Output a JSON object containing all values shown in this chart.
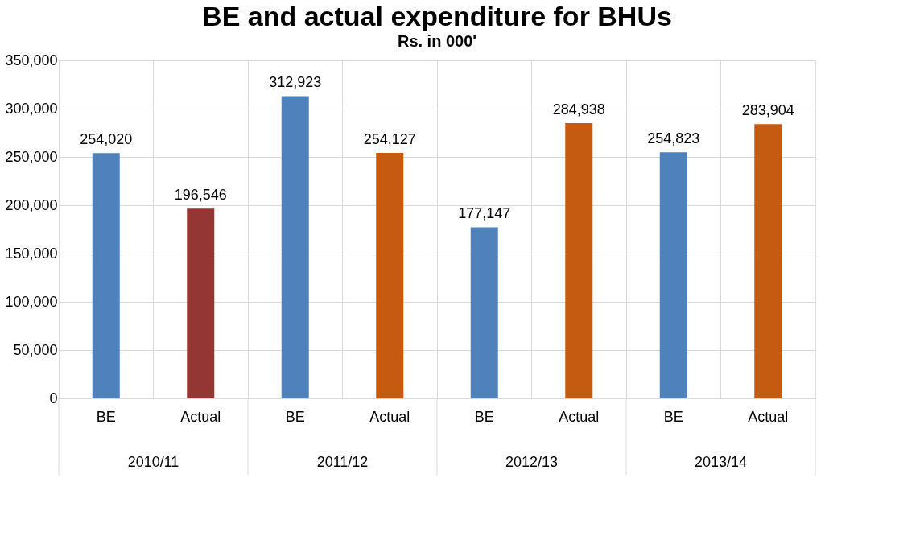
{
  "chart_data": {
    "type": "bar",
    "title": "BE and actual expenditure for BHUs",
    "subtitle": "Rs. in 000'",
    "categories": [
      "BE",
      "Actual",
      "BE",
      "Actual",
      "BE",
      "Actual",
      "BE",
      "Actual"
    ],
    "values": [
      254020,
      196546,
      312923,
      254127,
      177147,
      284938,
      254823,
      283904
    ],
    "value_labels": [
      "254,020",
      "196,546",
      "312,923",
      "254,127",
      "177,147",
      "284,938",
      "254,823",
      "283,904"
    ],
    "colors": [
      "#4f81bd",
      "#943634",
      "#4f81bd",
      "#c55a11",
      "#4f81bd",
      "#c55a11",
      "#4f81bd",
      "#c55a11"
    ],
    "annotations": [
      "2010/11",
      "2011/12",
      "2012/13",
      "2013/14"
    ],
    "ylim": [
      0,
      350000
    ],
    "yticks": [
      0,
      {
        "value": 50000,
        "label": "50,000"
      },
      {
        "value": 100000,
        "label": "100,000"
      },
      {
        "value": 150000,
        "label": "150,000"
      },
      {
        "value": 200000,
        "label": "200,000"
      },
      {
        "value": 250000,
        "label": "250,000"
      },
      {
        "value": 300000,
        "label": "300,000"
      },
      {
        "value": 350000,
        "label": "350,000"
      }
    ],
    "grid": true
  }
}
